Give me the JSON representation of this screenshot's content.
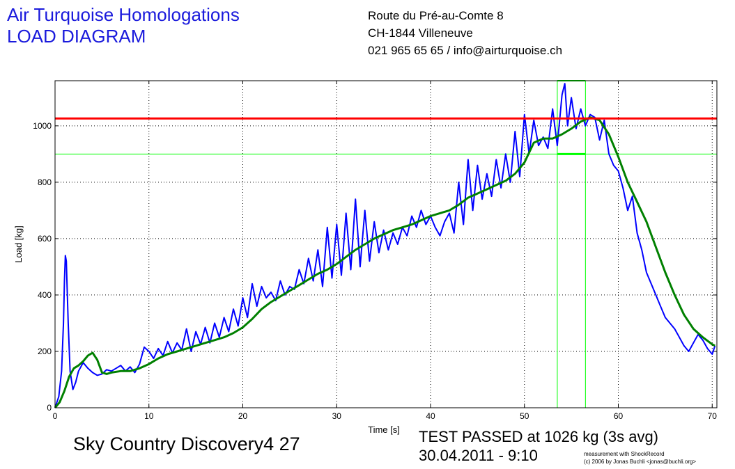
{
  "header": {
    "title_line1": "Air Turquoise Homologations",
    "title_line2": "LOAD DIAGRAM",
    "address_line1": "Route du Pré-au-Comte 8",
    "address_line2": "CH-1844 Villeneuve",
    "address_line3": "021 965 65 65 / info@airturquoise.ch"
  },
  "footer": {
    "glider_name": "Sky Country Discovery4 27",
    "result_line1": "TEST PASSED at 1026 kg (3s avg)",
    "result_line2": "30.04.2011 - 9:10",
    "credit_line1": "measurement with ShockRecord",
    "credit_line2": "(c) 2006 by Jonas Buchli <jonas@buchli.org>"
  },
  "colors": {
    "raw_load": "#0000ff",
    "avg_load": "#008000",
    "limit_line": "#ff0000",
    "window_marker": "#00ff00",
    "title": "#1a1adc"
  },
  "chart_data": {
    "type": "line",
    "xlabel": "Time [s]",
    "ylabel": "Load [kg]",
    "xlim": [
      0,
      70.5
    ],
    "ylim": [
      0,
      1160
    ],
    "x_ticks": [
      0,
      10,
      20,
      30,
      40,
      50,
      60,
      70
    ],
    "y_ticks": [
      0,
      200,
      400,
      600,
      800,
      1000
    ],
    "grid": true,
    "series": [
      {
        "key": "raw",
        "x": [
          0,
          0.4,
          0.7,
          0.9,
          1.0,
          1.1,
          1.2,
          1.4,
          1.6,
          1.9,
          2.2,
          2.5,
          3.0,
          3.5,
          4.0,
          4.5,
          5.0,
          5.5,
          6.0,
          6.5,
          7.0,
          7.5,
          8.0,
          8.5,
          9.0,
          9.5,
          10.0,
          10.5,
          11.0,
          11.5,
          12.0,
          12.5,
          13.0,
          13.5,
          14.0,
          14.5,
          15.0,
          15.5,
          16.0,
          16.5,
          17.0,
          17.5,
          18.0,
          18.5,
          19.0,
          19.5,
          20.0,
          20.5,
          21.0,
          21.5,
          22.0,
          22.5,
          23.0,
          23.5,
          24.0,
          24.5,
          25.0,
          25.5,
          26.0,
          26.5,
          27.0,
          27.5,
          28.0,
          28.5,
          29.0,
          29.5,
          30.0,
          30.5,
          31.0,
          31.5,
          32.0,
          32.5,
          33.0,
          33.5,
          34.0,
          34.5,
          35.0,
          35.5,
          36.0,
          36.5,
          37.0,
          37.5,
          38.0,
          38.5,
          39.0,
          39.5,
          40.0,
          40.5,
          41.0,
          41.5,
          42.0,
          42.5,
          43.0,
          43.5,
          44.0,
          44.5,
          45.0,
          45.5,
          46.0,
          46.5,
          47.0,
          47.5,
          48.0,
          48.5,
          49.0,
          49.5,
          50.0,
          50.5,
          51.0,
          51.5,
          52.0,
          52.5,
          53.0,
          53.5,
          54.0,
          54.3,
          54.6,
          55.0,
          55.5,
          56.0,
          56.5,
          57.0,
          57.5,
          58.0,
          58.5,
          59.0,
          59.5,
          60.0,
          60.5,
          61.0,
          61.5,
          62.0,
          62.5,
          63.0,
          63.5,
          64.0,
          64.5,
          65.0,
          65.5,
          66.0,
          66.5,
          67.0,
          67.5,
          68.0,
          68.5,
          69.0,
          69.5,
          70.0,
          70.3
        ],
        "y": [
          0,
          40,
          130,
          300,
          450,
          540,
          520,
          300,
          130,
          65,
          90,
          130,
          160,
          140,
          125,
          115,
          120,
          135,
          130,
          140,
          150,
          130,
          145,
          125,
          155,
          215,
          200,
          175,
          210,
          185,
          235,
          195,
          230,
          205,
          280,
          200,
          270,
          225,
          285,
          230,
          300,
          250,
          320,
          270,
          350,
          290,
          390,
          320,
          440,
          360,
          430,
          390,
          410,
          380,
          450,
          400,
          430,
          420,
          490,
          440,
          530,
          450,
          560,
          430,
          640,
          460,
          650,
          470,
          690,
          490,
          740,
          500,
          700,
          520,
          660,
          550,
          630,
          560,
          620,
          580,
          640,
          610,
          680,
          640,
          700,
          650,
          680,
          640,
          610,
          660,
          690,
          620,
          800,
          650,
          880,
          700,
          860,
          740,
          830,
          750,
          880,
          780,
          900,
          800,
          980,
          820,
          1040,
          900,
          1020,
          930,
          960,
          920,
          1060,
          930,
          1110,
          1150,
          1000,
          1100,
          990,
          1060,
          1000,
          1040,
          1030,
          950,
          1020,
          900,
          860,
          840,
          780,
          700,
          750,
          620,
          560,
          480,
          440,
          400,
          360,
          320,
          300,
          280,
          250,
          220,
          200,
          230,
          260,
          240,
          210,
          190,
          220
        ],
        "name": ""
      },
      {
        "key": "avg",
        "x": [
          0,
          0.5,
          1.0,
          1.5,
          2.0,
          2.5,
          3.0,
          3.5,
          4.0,
          4.5,
          5.0,
          5.5,
          6.0,
          7.0,
          8.0,
          9.0,
          10.0,
          11.0,
          12.0,
          13.0,
          14.0,
          15.0,
          16.0,
          17.0,
          18.0,
          19.0,
          20.0,
          21.0,
          22.0,
          23.0,
          24.0,
          25.0,
          26.0,
          27.0,
          28.0,
          29.0,
          30.0,
          31.0,
          32.0,
          33.0,
          34.0,
          35.0,
          36.0,
          37.0,
          38.0,
          39.0,
          40.0,
          41.0,
          42.0,
          43.0,
          44.0,
          45.0,
          46.0,
          47.0,
          48.0,
          49.0,
          50.0,
          51.0,
          52.0,
          53.0,
          54.0,
          55.0,
          56.0,
          57.0,
          58.0,
          59.0,
          60.0,
          61.0,
          62.0,
          63.0,
          64.0,
          65.0,
          66.0,
          67.0,
          68.0,
          69.0,
          70.0,
          70.3
        ],
        "y": [
          0,
          20,
          60,
          110,
          140,
          150,
          165,
          185,
          195,
          170,
          125,
          120,
          125,
          130,
          130,
          140,
          155,
          175,
          190,
          200,
          210,
          220,
          230,
          240,
          250,
          265,
          285,
          315,
          350,
          375,
          395,
          415,
          435,
          455,
          475,
          490,
          510,
          535,
          560,
          580,
          600,
          615,
          630,
          640,
          650,
          665,
          680,
          690,
          700,
          720,
          745,
          760,
          775,
          790,
          805,
          830,
          870,
          940,
          955,
          955,
          970,
          990,
          1015,
          1030,
          1020,
          970,
          890,
          800,
          730,
          660,
          570,
          480,
          400,
          330,
          280,
          250,
          225,
          220
        ],
        "name": ""
      }
    ],
    "limit_line_y": 1026,
    "window_x": [
      53.5,
      56.5
    ],
    "window_y_low": 900,
    "window_y_high": 1160
  }
}
